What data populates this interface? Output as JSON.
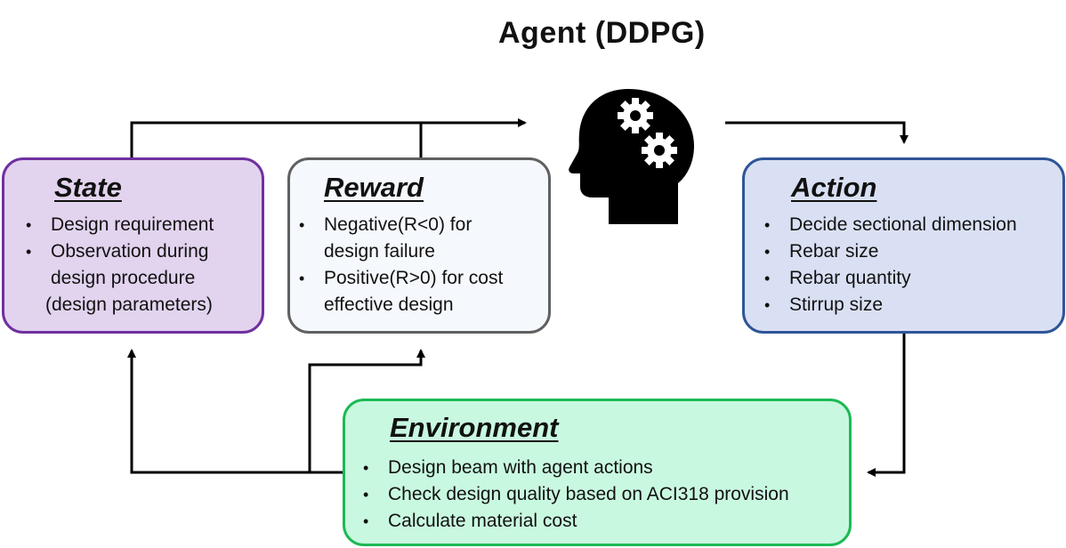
{
  "agent": {
    "title": "Agent (DDPG)",
    "icon": "head-with-gears-icon"
  },
  "state": {
    "title": "State",
    "items": [
      "Design requirement",
      "Observation during",
      "design procedure",
      "(design parameters)"
    ]
  },
  "reward": {
    "title": "Reward",
    "items": [
      "Negative(R<0) for",
      "design failure",
      "Positive(R>0) for cost",
      "effective design"
    ]
  },
  "action": {
    "title": "Action",
    "items": [
      "Decide sectional dimension",
      "Rebar size",
      "Rebar quantity",
      "Stirrup size"
    ]
  },
  "environment": {
    "title": "Environment",
    "items": [
      "Design beam with agent actions",
      "Check design quality based on ACI318 provision",
      "Calculate material cost"
    ]
  },
  "colors": {
    "state_fill": "#e2d3ee",
    "state_border": "#7030a0",
    "reward_fill": "#f5f8fc",
    "reward_border": "#606060",
    "action_fill": "#d9e0f3",
    "action_border": "#2f5597",
    "env_fill": "#c9f8e0",
    "env_border": "#1db954"
  }
}
